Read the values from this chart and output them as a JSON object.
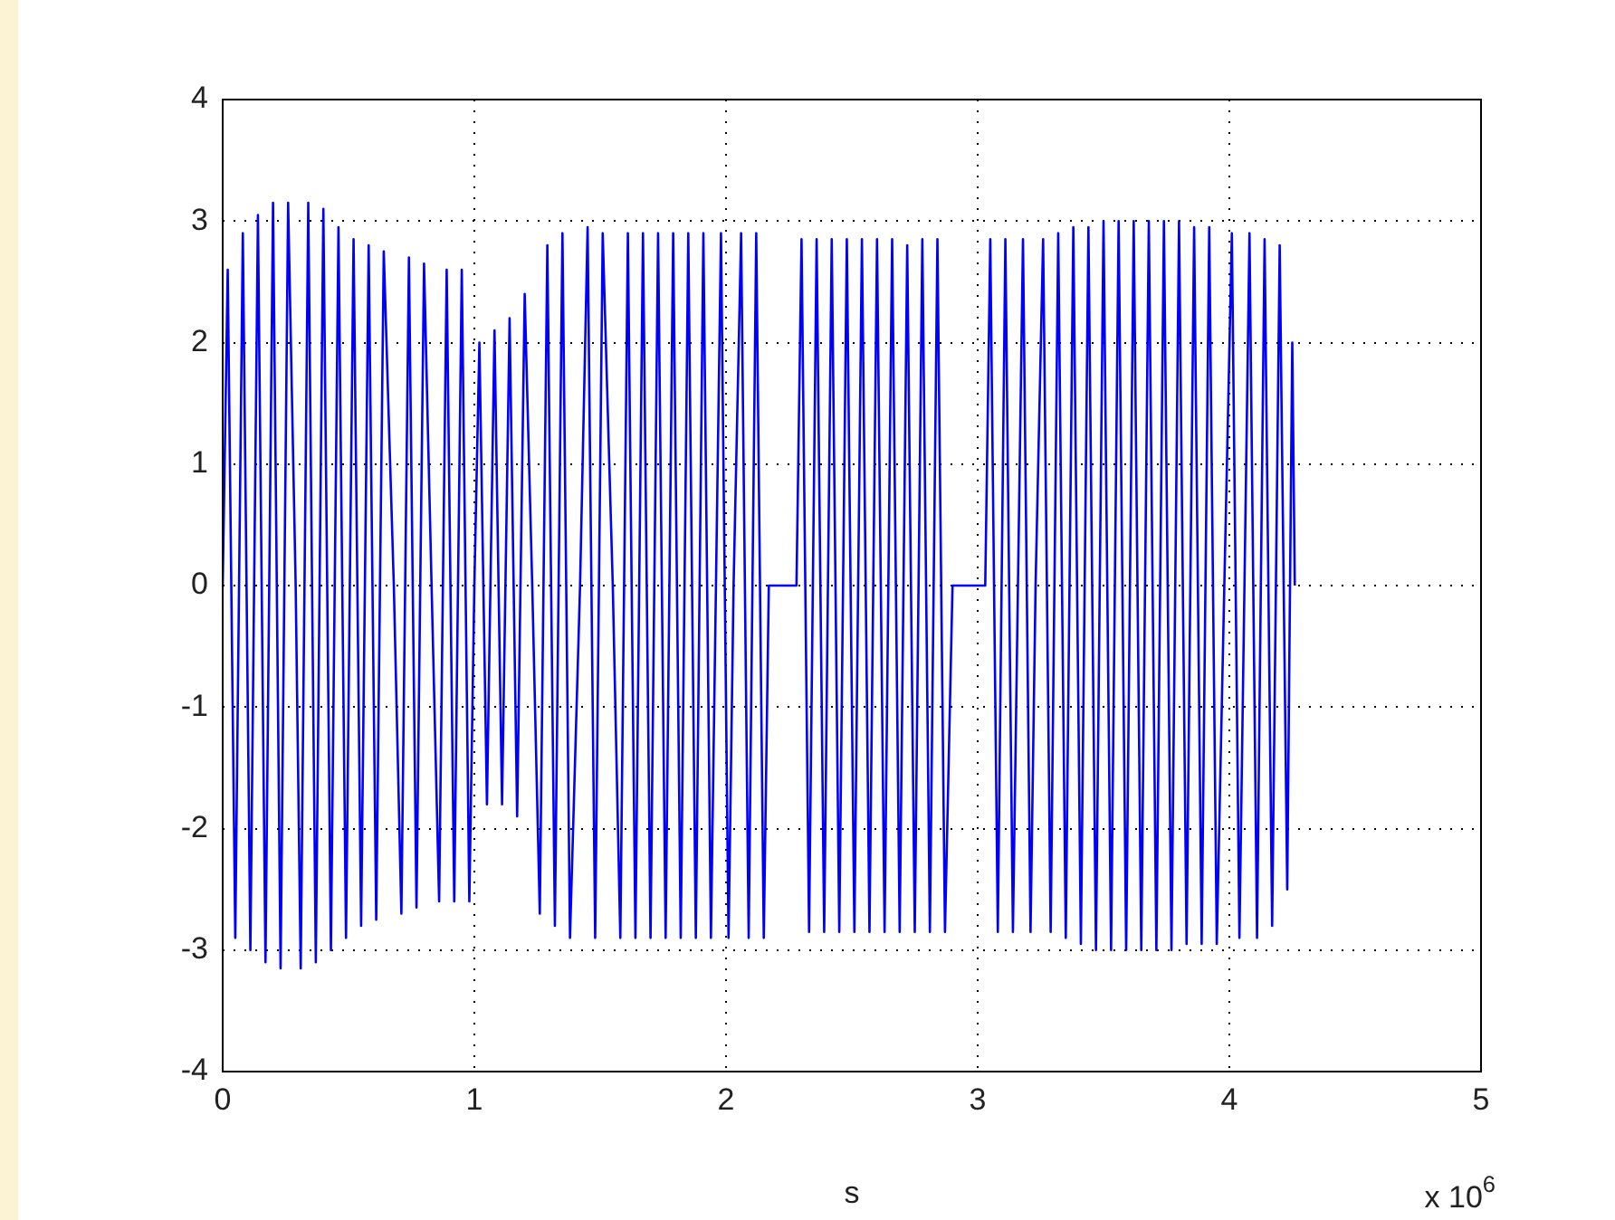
{
  "chart_data": {
    "type": "line",
    "xlabel": "s",
    "annotations": [
      "x 10$^{6}$"
    ],
    "xlim": [
      0,
      5
    ],
    "xticks": [
      0,
      1,
      2,
      3,
      4,
      5
    ],
    "ylim": [
      -4,
      4
    ],
    "yticks": [
      -4,
      -3,
      -2,
      -1,
      0,
      1,
      2,
      3,
      4
    ],
    "grid": true,
    "legend": false,
    "marker": "none",
    "line_style": "solid",
    "series": [
      {
        "color": "#0000ff",
        "x": [
          0,
          0.02,
          0.05,
          0.08,
          0.11,
          0.14,
          0.17,
          0.2,
          0.23,
          0.26,
          0.29,
          0.31,
          0.34,
          0.37,
          0.4,
          0.43,
          0.46,
          0.49,
          0.52,
          0.55,
          0.58,
          0.61,
          0.64,
          0.68,
          0.71,
          0.74,
          0.77,
          0.8,
          0.83,
          0.86,
          0.89,
          0.92,
          0.95,
          0.98,
          1.0,
          1.02,
          1.05,
          1.08,
          1.11,
          1.14,
          1.17,
          1.2,
          1.23,
          1.26,
          1.29,
          1.32,
          1.35,
          1.38,
          1.42,
          1.45,
          1.48,
          1.51,
          1.55,
          1.58,
          1.61,
          1.64,
          1.67,
          1.7,
          1.73,
          1.76,
          1.79,
          1.82,
          1.85,
          1.88,
          1.91,
          1.94,
          1.96,
          1.98,
          2.01,
          2.03,
          2.06,
          2.09,
          2.12,
          2.15,
          2.17,
          2.28,
          2.3,
          2.33,
          2.36,
          2.39,
          2.42,
          2.45,
          2.48,
          2.51,
          2.54,
          2.57,
          2.6,
          2.63,
          2.66,
          2.69,
          2.72,
          2.75,
          2.78,
          2.81,
          2.84,
          2.87,
          2.9,
          3.03,
          3.05,
          3.08,
          3.11,
          3.14,
          3.16,
          3.18,
          3.21,
          3.23,
          3.26,
          3.29,
          3.32,
          3.35,
          3.38,
          3.41,
          3.44,
          3.47,
          3.5,
          3.53,
          3.56,
          3.59,
          3.62,
          3.65,
          3.68,
          3.71,
          3.74,
          3.77,
          3.8,
          3.83,
          3.86,
          3.89,
          3.92,
          3.95,
          3.98,
          4.01,
          4.04,
          4.06,
          4.08,
          4.11,
          4.14,
          4.17,
          4.2,
          4.23,
          4.25,
          4.26
        ],
        "values": [
          0,
          2.6,
          -2.9,
          2.9,
          -3.0,
          3.05,
          -3.1,
          3.15,
          -3.15,
          3.15,
          0,
          -3.15,
          3.15,
          -3.1,
          3.1,
          -3.0,
          2.95,
          -2.9,
          2.85,
          -2.8,
          2.8,
          -2.75,
          2.75,
          0,
          -2.7,
          2.7,
          -2.65,
          2.65,
          0,
          -2.6,
          2.6,
          -2.6,
          2.6,
          -2.6,
          0,
          2.0,
          -1.8,
          2.1,
          -1.8,
          2.2,
          -1.9,
          2.4,
          0,
          -2.7,
          2.8,
          -2.8,
          2.9,
          -2.9,
          0,
          2.95,
          -2.9,
          2.9,
          0,
          -2.9,
          2.9,
          -2.9,
          2.9,
          -2.9,
          2.9,
          -2.9,
          2.9,
          -2.9,
          2.9,
          -2.9,
          2.9,
          -2.9,
          0,
          2.9,
          -2.9,
          0,
          2.9,
          -2.9,
          2.9,
          -2.9,
          0,
          0,
          2.85,
          -2.85,
          2.85,
          -2.85,
          2.85,
          -2.85,
          2.85,
          -2.85,
          2.85,
          -2.85,
          2.85,
          -2.85,
          2.85,
          -2.85,
          2.8,
          -2.85,
          2.85,
          -2.85,
          2.85,
          -2.85,
          0,
          0,
          2.85,
          -2.85,
          2.85,
          -2.85,
          0,
          2.85,
          -2.85,
          0,
          2.85,
          -2.85,
          2.9,
          -2.9,
          2.95,
          -2.95,
          2.95,
          -3.0,
          3.0,
          -3.0,
          3.0,
          -3.0,
          3.0,
          -3.0,
          3.0,
          -3.0,
          3.0,
          -3.0,
          3.0,
          -2.95,
          2.95,
          -2.95,
          2.95,
          -2.95,
          0,
          2.9,
          -2.9,
          0,
          2.9,
          -2.9,
          2.85,
          -2.8,
          2.8,
          -2.5,
          2.0,
          0
        ]
      }
    ]
  }
}
